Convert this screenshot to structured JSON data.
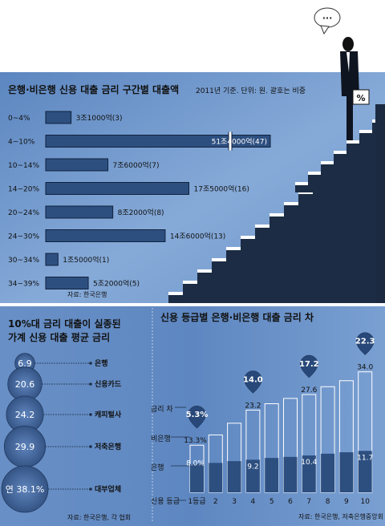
{
  "top_chart": {
    "title": "은행·비은행 신용 대출 금리 구간별 대출액",
    "subtitle": "2011년 기준. 단위: 원. 괄호는 비중",
    "source": "자료: 한국은행",
    "percent_sign": "%",
    "speech": "···"
  },
  "left_chart": {
    "title_line1": "10%대 금리 대출이 실종된",
    "title_line2": "가계 신용 대출 평균 금리",
    "source": "자료: 한국은행, 각 협회"
  },
  "right_chart": {
    "title": "신용 등급별 은행·비은행 대출 금리 차",
    "source": "자료: 한국은행, 저축은행중앙회",
    "legend_gap": "금리 차",
    "legend_nonbank": "비은행",
    "legend_bank": "은행",
    "axis_label": "신용 등급"
  },
  "chart_data": [
    {
      "type": "bar",
      "orientation": "horizontal",
      "title": "은행·비은행 신용 대출 금리 구간별 대출액",
      "subtitle": "2011년 기준. 단위: 원. 괄호는 비중",
      "axis_break": true,
      "categories": [
        "0~4%",
        "4~10%",
        "10~14%",
        "14~20%",
        "20~24%",
        "24~30%",
        "30~34%",
        "34~39%"
      ],
      "values": [
        31000,
        514000,
        76000,
        175000,
        82000,
        146000,
        15000,
        52000
      ],
      "value_labels": [
        "3조1000억(3)",
        "51조4000억(47)",
        "7조6000억(7)",
        "17조5000억(16)",
        "8조2000억(8)",
        "14조6000억(13)",
        "1조5000억(1)",
        "5조2000억(5)"
      ],
      "shares": [
        3,
        47,
        7,
        16,
        8,
        13,
        1,
        5
      ]
    },
    {
      "type": "bubble",
      "title": "10%대 금리 대출이 실종된 가계 신용 대출 평균 금리",
      "unit": "%",
      "categories": [
        "은행",
        "신용카드",
        "캐피털사",
        "저축은행",
        "대부업체"
      ],
      "values": [
        6.9,
        20.6,
        24.2,
        29.9,
        38.1
      ],
      "value_labels": [
        "6.9",
        "20.6",
        "24.2",
        "29.9",
        "연 38.1%"
      ]
    },
    {
      "type": "bar",
      "title": "신용 등급별 은행·비은행 대출 금리 차",
      "categories": [
        "1등급",
        "2",
        "3",
        "4",
        "5",
        "6",
        "7",
        "8",
        "9",
        "10"
      ],
      "series": [
        {
          "name": "비은행",
          "values": [
            13.3,
            16.2,
            19.5,
            23.2,
            25.0,
            26.5,
            27.6,
            29.8,
            31.5,
            34.0
          ]
        },
        {
          "name": "은행",
          "values": [
            8.0,
            8.3,
            8.8,
            9.2,
            9.7,
            10.0,
            10.4,
            10.9,
            11.3,
            11.7
          ]
        }
      ],
      "value_labels": {
        "비은행": [
          "13.3%",
          "",
          "",
          "23.2",
          "",
          "",
          "27.6",
          "",
          "",
          "34.0"
        ],
        "은행": [
          "8.0%",
          "",
          "",
          "9.2",
          "",
          "",
          "10.4",
          "",
          "",
          "11.7"
        ]
      },
      "gap_labels": [
        "5.3%",
        "",
        "",
        "14.0",
        "",
        "",
        "17.2",
        "",
        "",
        "22.3"
      ],
      "ylim": [
        0,
        36
      ]
    }
  ],
  "colors": {
    "bg_top": "#6c93c8",
    "bg_top_light": "#86a9d6",
    "bg_bottom": "#5f89c2",
    "bar": "#2d4f80",
    "bar_stroke": "#10223d",
    "stair_dark": "#1c2c44",
    "stair_light": "#ffffff",
    "bubble": "#3a5a8f"
  }
}
